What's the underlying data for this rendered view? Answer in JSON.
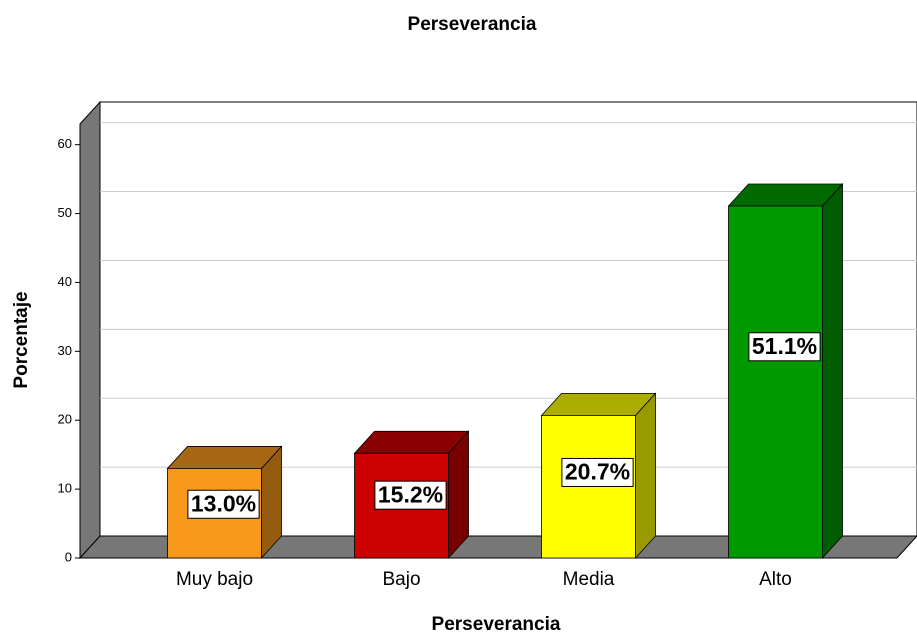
{
  "chart_data": {
    "type": "bar3d",
    "title": "Perseverancia",
    "x_label": "Perseverancia",
    "y_label": "Porcentaje",
    "categories": [
      "Muy bajo",
      "Bajo",
      "Media",
      "Alto"
    ],
    "values": [
      13.0,
      15.2,
      20.7,
      51.1
    ],
    "value_labels": [
      "13.0%",
      "15.2%",
      "20.7%",
      "51.1%"
    ],
    "colors": [
      "#f7981d",
      "#cc0000",
      "#ffff00",
      "#009a00"
    ],
    "ylim": [
      0,
      63
    ],
    "yticks": [
      0,
      10,
      20,
      30,
      40,
      50,
      60
    ],
    "grid": true
  }
}
